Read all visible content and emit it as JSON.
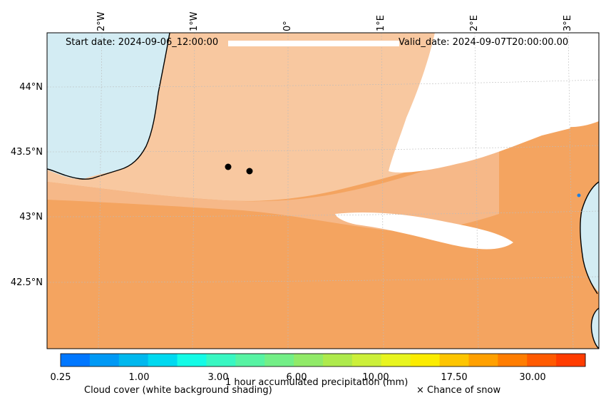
{
  "map": {
    "start_date": "Start date: 2024-09-06_12:00:00",
    "valid_date": "Valid_date: 2024-09-07T20:00:00.00",
    "lon_labels": [
      "2°W",
      "1°W",
      "0°",
      "1°E",
      "2°E",
      "3°E"
    ],
    "lat_labels": [
      "44°N",
      "43.5°N",
      "43°N",
      "42.5°N"
    ],
    "colors": {
      "sea_precip": "#f4a460",
      "sea_light": "#f8c8a0",
      "land_snow_blue": "#d3ecf3",
      "land_white": "#ffffff",
      "coastline": "#000000",
      "gridline": "#bbbbbb",
      "point_marker": "#000000"
    }
  },
  "colorbar": {
    "title": "1 hour accumulated precipitation (mm)",
    "ticks": [
      "0.25",
      "1.00",
      "3.00",
      "6.00",
      "10.00",
      "17.50",
      "30.00"
    ],
    "colors": [
      "#0077ff",
      "#0099f5",
      "#00b8ee",
      "#00d9f0",
      "#14fbe6",
      "#38f7c2",
      "#57f3a3",
      "#73ef87",
      "#91ea68",
      "#aeea4c",
      "#ccf03a",
      "#e8f51f",
      "#fbec00",
      "#fdc500",
      "#ffa000",
      "#ff7d00",
      "#ff5a00",
      "#ff3c00"
    ]
  },
  "legend": {
    "cloud_cover": "Cloud cover (white background shading)",
    "snow": "× Chance of snow"
  }
}
